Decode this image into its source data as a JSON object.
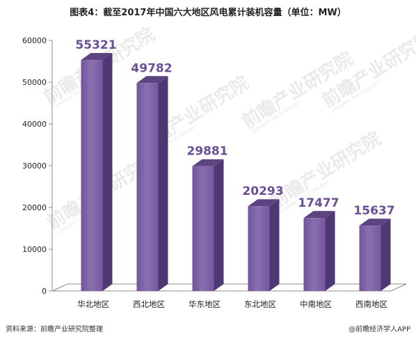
{
  "header": {
    "title": "图表4：截至2017年中国六大地区风电累计装机容量（单位：MW）"
  },
  "chart_data": {
    "type": "bar",
    "title": "图表4：截至2017年中国六大地区风电累计装机容量（单位：MW）",
    "categories": [
      "华北地区",
      "西北地区",
      "华东地区",
      "东北地区",
      "中南地区",
      "西南地区"
    ],
    "values": [
      55321,
      49782,
      29881,
      20293,
      17477,
      15637
    ],
    "ylim": [
      0,
      60000
    ],
    "yticks": [
      "0",
      "10000",
      "20000",
      "30000",
      "40000",
      "50000",
      "60000"
    ],
    "xlabel": "",
    "ylabel": "",
    "grid": false,
    "style": "3d",
    "bar_color": "#8064a2",
    "label_color": "#6a4f96"
  },
  "footer": {
    "source": "资料来源：前瞻产业研究院整理",
    "credit": "@前瞻经济学人APP"
  },
  "watermark": {
    "text": "前瞻产业研究院",
    "sub": "FORWARD THE ECONOMIST"
  }
}
